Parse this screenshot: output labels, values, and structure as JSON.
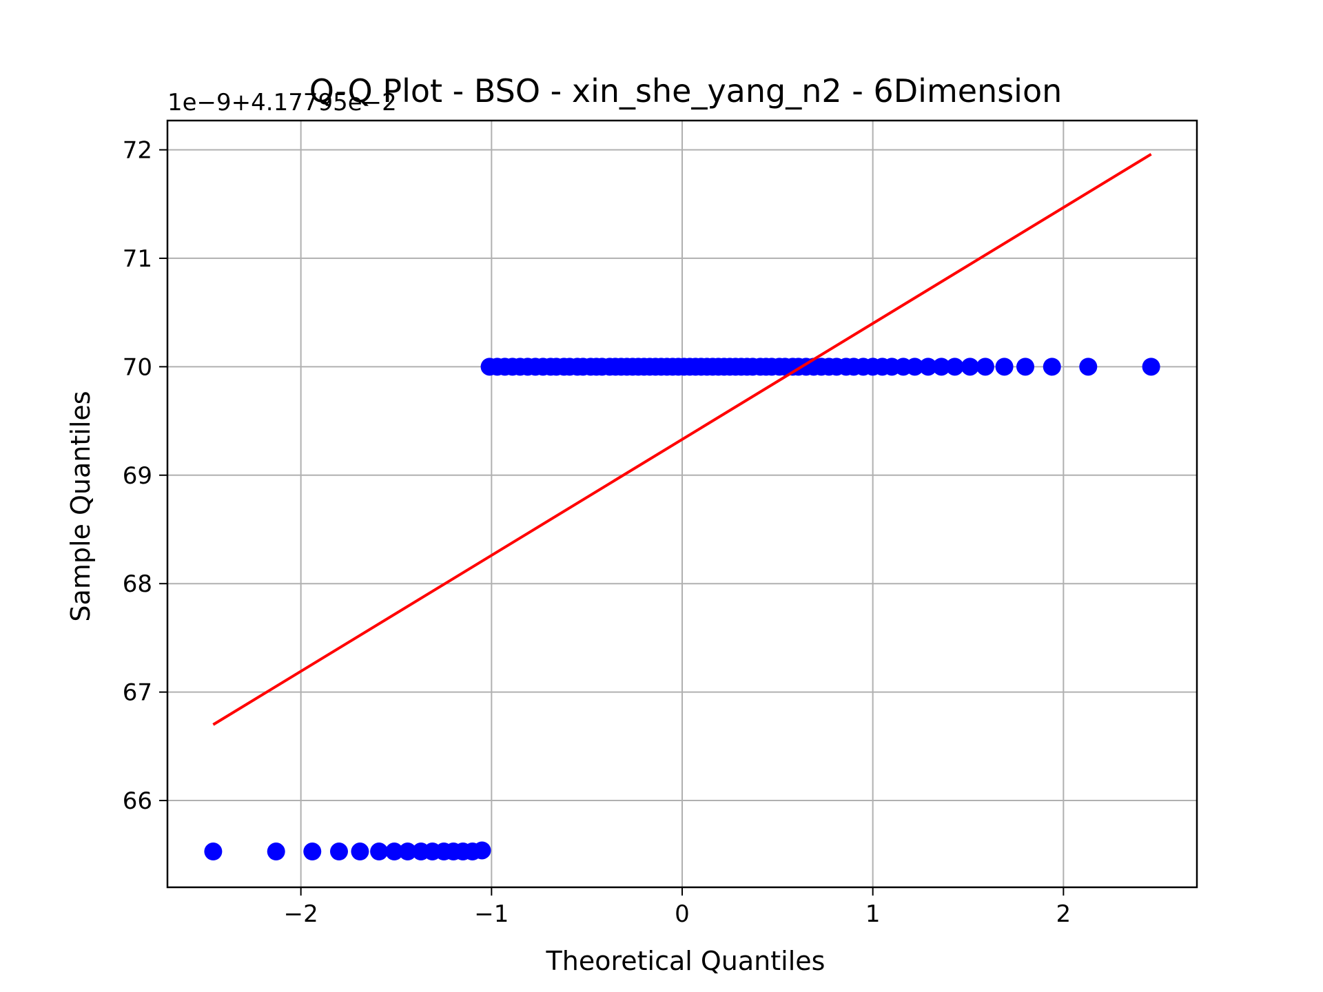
{
  "chart_data": {
    "type": "scatter",
    "title": "Q-Q Plot - BSO - xin_she_yang_n2 - 6Dimension",
    "xlabel": "Theoretical Quantiles",
    "ylabel": "Sample Quantiles",
    "y_offset_label": "1e−9+4.17795e−2",
    "xlim": [
      -2.7,
      2.7
    ],
    "ylim": [
      65.2,
      72.27
    ],
    "x_ticks": [
      -2,
      -1,
      0,
      1,
      2
    ],
    "x_tick_labels": [
      "−2",
      "−1",
      "0",
      "1",
      "2"
    ],
    "y_ticks": [
      66,
      67,
      68,
      69,
      70,
      71,
      72
    ],
    "y_tick_labels": [
      "66",
      "67",
      "68",
      "69",
      "70",
      "71",
      "72"
    ],
    "grid": true,
    "legend": "none",
    "marker_color": "#0000ff",
    "line_color": "#ff0000",
    "series": [
      {
        "kind": "points",
        "x": [
          -2.46,
          -2.13,
          -1.94,
          -1.8,
          -1.69,
          -1.59,
          -1.51,
          -1.44,
          -1.37,
          -1.31,
          -1.25,
          -1.2,
          -1.15,
          -1.1,
          -1.05
        ],
        "y": [
          65.53,
          65.53,
          65.53,
          65.53,
          65.53,
          65.53,
          65.53,
          65.53,
          65.53,
          65.53,
          65.53,
          65.53,
          65.53,
          65.53,
          65.54
        ]
      },
      {
        "kind": "points",
        "x": [
          -1.01,
          -0.97,
          -0.93,
          -0.89,
          -0.85,
          -0.81,
          -0.77,
          -0.73,
          -0.69,
          -0.66,
          -0.62,
          -0.59,
          -0.55,
          -0.52,
          -0.48,
          -0.45,
          -0.42,
          -0.38,
          -0.35,
          -0.32,
          -0.29,
          -0.26,
          -0.23,
          -0.2,
          -0.17,
          -0.14,
          -0.11,
          -0.08,
          -0.05,
          -0.02,
          0.01,
          0.04,
          0.07,
          0.1,
          0.13,
          0.16,
          0.19,
          0.22,
          0.25,
          0.28,
          0.31,
          0.34,
          0.37,
          0.41,
          0.44,
          0.47,
          0.51,
          0.54,
          0.58,
          0.61,
          0.65,
          0.69,
          0.73,
          0.77,
          0.81,
          0.86,
          0.9,
          0.95,
          1.0,
          1.05,
          1.1,
          1.16,
          1.22,
          1.29,
          1.36,
          1.43,
          1.51,
          1.59,
          1.69,
          1.8,
          1.94,
          2.13,
          2.46
        ],
        "y": [
          70,
          70,
          70,
          70,
          70,
          70,
          70,
          70,
          70,
          70,
          70,
          70,
          70,
          70,
          70,
          70,
          70,
          70,
          70,
          70,
          70,
          70,
          70,
          70,
          70,
          70,
          70,
          70,
          70,
          70,
          70,
          70,
          70,
          70,
          70,
          70,
          70,
          70,
          70,
          70,
          70,
          70,
          70,
          70,
          70,
          70,
          70,
          70,
          70,
          70,
          70,
          70,
          70,
          70,
          70,
          70,
          70,
          70,
          70,
          70,
          70,
          70,
          70,
          70,
          70,
          70,
          70,
          70,
          70,
          70,
          70,
          70,
          70
        ]
      },
      {
        "kind": "line",
        "x": [
          -2.46,
          2.46
        ],
        "y": [
          66.7,
          71.96
        ]
      }
    ]
  }
}
